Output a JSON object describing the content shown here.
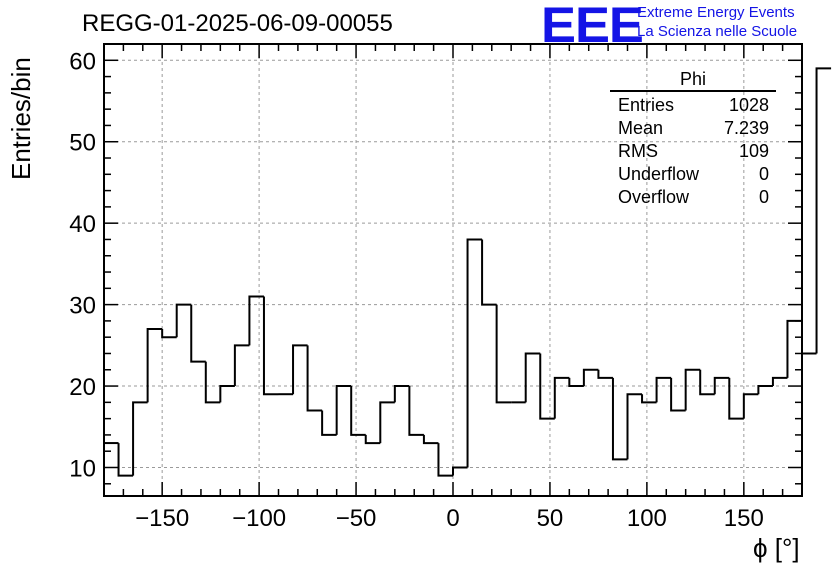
{
  "header": {
    "title": "REGG-01-2025-06-09-00055",
    "logo": "EEE",
    "logo_line1": "Extreme Energy Events",
    "logo_line2": "La Scienza nelle Scuole"
  },
  "stats": {
    "name": "Phi",
    "rows": [
      {
        "label": "Entries",
        "value": "1028"
      },
      {
        "label": "Mean",
        "value": "7.239"
      },
      {
        "label": "RMS",
        "value": "109"
      },
      {
        "label": "Underflow",
        "value": "0"
      },
      {
        "label": "Overflow",
        "value": "0"
      }
    ]
  },
  "colors": {
    "line": "#000000",
    "grid": "#9a9a9a",
    "logo": "#1414e6"
  },
  "chart_data": {
    "type": "histogram",
    "title": "REGG-01-2025-06-09-00055",
    "xlabel": "ϕ [°]",
    "ylabel": "Entries/bin",
    "xlim": [
      -180,
      180
    ],
    "ylim": [
      6.5,
      62
    ],
    "xticks": [
      -150,
      -100,
      -50,
      0,
      50,
      100,
      150
    ],
    "xtick_labels": [
      "−150",
      "−100",
      "−50",
      "0",
      "50",
      "100",
      "150"
    ],
    "yticks": [
      10,
      20,
      30,
      40,
      50,
      60
    ],
    "ytick_labels": [
      "10",
      "20",
      "30",
      "40",
      "50",
      "60"
    ],
    "grid": true,
    "bin_start": -180,
    "bin_width": 7.5,
    "values": [
      13,
      9,
      18,
      27,
      26,
      30,
      23,
      18,
      20,
      25,
      31,
      19,
      19,
      25,
      17,
      14,
      20,
      14,
      13,
      18,
      20,
      14,
      13,
      9,
      10,
      38,
      30,
      18,
      18,
      24,
      16,
      21,
      20,
      22,
      21,
      11,
      19,
      18,
      21,
      17,
      22,
      19,
      21,
      16,
      19,
      20,
      21,
      28,
      24,
      59
    ]
  }
}
